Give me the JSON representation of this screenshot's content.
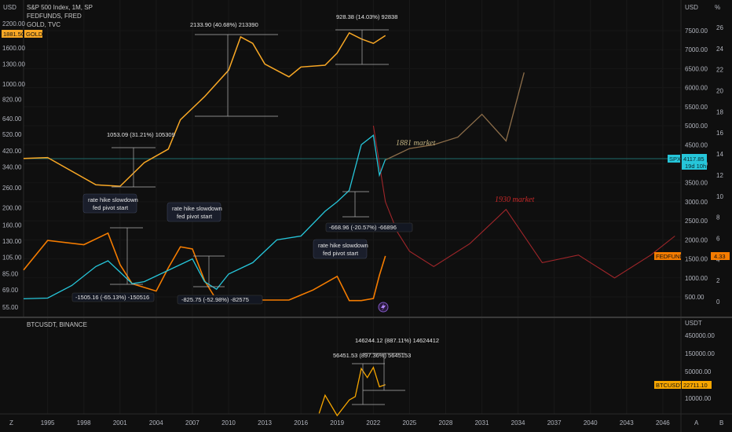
{
  "colors": {
    "background": "#0f0f0f",
    "spx": "#26c6da",
    "gold": "#f9a825",
    "fedfunds": "#f57c00",
    "projection_1881": "#8d6e4a",
    "projection_1930": "#c62828",
    "btc": "#f7a600",
    "grid": "#1e1e1e",
    "hline": "#1e6b6b"
  },
  "legend": {
    "line1": "S&P 500 Index, 1M, SP",
    "line2": "FEDFUNDS, FRED",
    "line3": "GOLD, TVC",
    "gold_value": "1881.50",
    "gold_label": "GOLD"
  },
  "axes": {
    "left_title": "USD",
    "right_title": "USD",
    "right_pct_title": "%",
    "btc_title": "USDT",
    "left_ticks": [
      "2200.00",
      "1881.50",
      "1600.00",
      "1300.00",
      "1000.00",
      "820.00",
      "640.00",
      "520.00",
      "420.00",
      "340.00",
      "260.00",
      "200.00",
      "160.00",
      "130.00",
      "105.00",
      "85.00",
      "69.00",
      "55.00"
    ],
    "right_ticks": [
      "7500.00",
      "7000.00",
      "6500.00",
      "6000.00",
      "5500.00",
      "5000.00",
      "4500.00",
      "4000.00",
      "3500.00",
      "3000.00",
      "2500.00",
      "2000.00",
      "1500.00",
      "1000.00",
      "500.00"
    ],
    "pct_ticks": [
      "26",
      "24",
      "22",
      "20",
      "18",
      "16",
      "14",
      "12",
      "10",
      "8",
      "6",
      "4",
      "2",
      "0"
    ],
    "btc_ticks": [
      "450000.00",
      "150000.00",
      "50000.00",
      "10000.00"
    ],
    "x_ticks": [
      "1995",
      "1998",
      "2001",
      "2004",
      "2007",
      "2010",
      "2013",
      "2016",
      "2019",
      "2022",
      "2025",
      "2028",
      "2031",
      "2034",
      "2037",
      "2040",
      "2043",
      "2046"
    ]
  },
  "badges": {
    "spx_label": "SPX",
    "spx_value": "4117.85",
    "spx_countdown": "19d 10h",
    "fed_label": "FEDFUNDS",
    "fed_value": "4.33",
    "btc_label": "BTCUSDT",
    "btc_value": "22711.10"
  },
  "btc_pane_title": "BTCUSDT, BINANCE",
  "annotations": {
    "gold_move1": "1053.09 (31.21%) 105309",
    "gold_move2": "2133.90 (40.68%) 213390",
    "gold_move3": "928.38 (14.03%) 92838",
    "spx_drop1": "-1505.16 (-65.13%) -150516",
    "spx_drop2": "-825.75 (-52.98%) -82575",
    "spx_drop3": "-668.96 (-20.57%) -66896",
    "note_line1": "rate hike slowdown",
    "note_line2": "fed pivot start",
    "proj_1881": "1881 market",
    "proj_1930": "1930 market",
    "btc_move1": "146244.12 (887.11%) 14624412",
    "btc_move2": "56451.53 (897.36%) 5645153"
  },
  "corner": {
    "left": "Z",
    "right_a": "A",
    "right_b": "B"
  },
  "chart_data": [
    {
      "type": "line",
      "title": "S&P 500 Index, 1M, SP",
      "series": [
        {
          "name": "S&P 500 Index, 1M, SP",
          "x": [
            1993,
            1995,
            1997,
            1999,
            2000,
            2001,
            2002,
            2003,
            2005,
            2007,
            2008,
            2009,
            2010,
            2012,
            2014,
            2016,
            2018,
            2019,
            2020,
            2021,
            2022,
            2022.5,
            2023
          ],
          "values": [
            450,
            470,
            800,
            1300,
            1450,
            1150,
            850,
            900,
            1200,
            1500,
            900,
            700,
            1100,
            1400,
            2000,
            2100,
            2750,
            3000,
            3300,
            4500,
            4750,
            3700,
            4117.85
          ]
        },
        {
          "name": "FEDFUNDS, FRED",
          "x": [
            1993,
            1995,
            1998,
            2000,
            2001,
            2002,
            2004,
            2005,
            2006,
            2007,
            2008,
            2009,
            2015,
            2017,
            2019,
            2020,
            2021,
            2022,
            2022.5,
            2023
          ],
          "values": [
            3.0,
            5.8,
            5.4,
            6.5,
            3.5,
            1.7,
            1.0,
            3.2,
            5.2,
            5.0,
            2.0,
            0.15,
            0.15,
            1.1,
            2.4,
            0.1,
            0.1,
            0.3,
            2.5,
            4.33
          ]
        },
        {
          "name": "GOLD, TVC",
          "x": [
            1993,
            1995,
            1999,
            2001,
            2003,
            2005,
            2006,
            2008,
            2010,
            2011,
            2012,
            2013,
            2015,
            2016,
            2018,
            2019,
            2020,
            2021,
            2022,
            2023
          ],
          "values": [
            380,
            385,
            270,
            265,
            360,
            430,
            630,
            850,
            1200,
            1850,
            1700,
            1300,
            1100,
            1250,
            1280,
            1500,
            1950,
            1800,
            1700,
            1881.5
          ]
        },
        {
          "name": "1881 market",
          "x": [
            2023,
            2025,
            2027,
            2029,
            2031,
            2033,
            2034.5
          ],
          "values": [
            4100,
            4400,
            4500,
            4700,
            5300,
            4600,
            6400
          ]
        },
        {
          "name": "1930 market",
          "x": [
            2022,
            2023,
            2024,
            2025,
            2027,
            2030,
            2033,
            2036,
            2039,
            2042,
            2045,
            2047
          ],
          "values": [
            5000,
            3000,
            2200,
            1700,
            1300,
            1900,
            2800,
            1400,
            1600,
            1000,
            1600,
            2100
          ]
        }
      ],
      "ylabel": "USD"
    },
    {
      "type": "line",
      "title": "BTCUSDT, BINANCE",
      "series": [
        {
          "name": "BTCUSDT, BINANCE",
          "x": [
            2017.5,
            2018,
            2019,
            2020,
            2020.5,
            2021,
            2021.5,
            2022,
            2022.5,
            2023
          ],
          "values": [
            4000,
            12000,
            3500,
            9000,
            11000,
            60000,
            35000,
            65000,
            20000,
            22711.1
          ]
        }
      ],
      "ylabel": "USDT"
    }
  ]
}
